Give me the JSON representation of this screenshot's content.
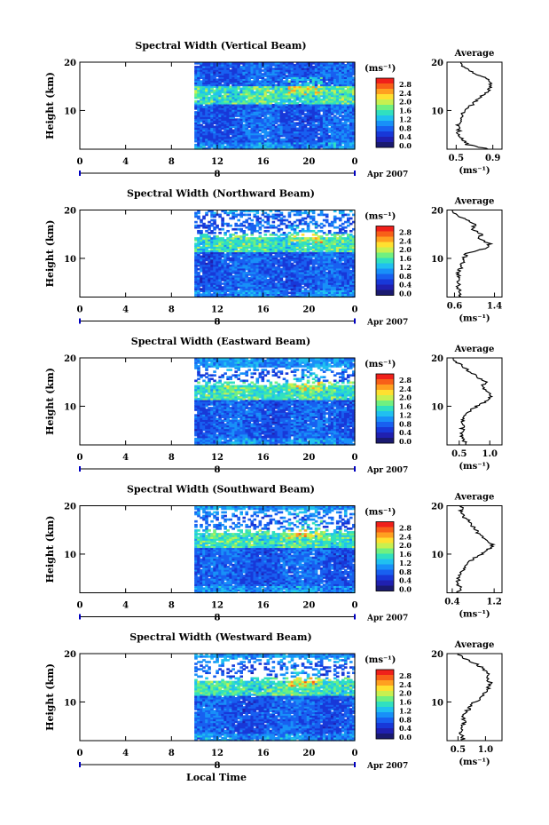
{
  "figure": {
    "xlabel": "Local Time",
    "date_label": "Apr 2007",
    "day_label": "8",
    "unit_label": "(ms⁻¹)",
    "avg_title": "Average",
    "avg_unit": "(ms⁻¹)"
  },
  "colorbar": {
    "ticks": [
      "2.8",
      "2.4",
      "2.0",
      "1.6",
      "1.2",
      "0.8",
      "0.4",
      "0.0"
    ],
    "colors": [
      "#f0201a",
      "#f86018",
      "#ffa020",
      "#ffe030",
      "#c8f050",
      "#70f080",
      "#30e0c0",
      "#20c0f0",
      "#1890f8",
      "#1860f0",
      "#1838d8",
      "#2020b0",
      "#1a1a70"
    ]
  },
  "chart_data": [
    {
      "type": "heatmap",
      "title": "Spectral Width (Vertical Beam)",
      "ylabel": "Height (km)",
      "xticks": [
        "0",
        "4",
        "8",
        "12",
        "16",
        "20",
        "0"
      ],
      "yticks": [
        "20",
        "10"
      ],
      "x_range": [
        0,
        24
      ],
      "y_range": [
        2,
        20
      ],
      "data_start_hour": 10,
      "variant": 0,
      "gap_top": 21.0,
      "gap_bottom": 20.0,
      "speckle": 0.18,
      "average": {
        "xticks": [
          "0.5",
          "0.9"
        ],
        "x_range": [
          0.4,
          1.0
        ],
        "profile": [
          [
            2,
            0.86
          ],
          [
            3,
            0.62
          ],
          [
            4,
            0.56
          ],
          [
            5,
            0.52
          ],
          [
            6,
            0.53
          ],
          [
            7,
            0.51
          ],
          [
            8,
            0.54
          ],
          [
            9,
            0.56
          ],
          [
            10,
            0.58
          ],
          [
            11,
            0.66
          ],
          [
            12,
            0.72
          ],
          [
            13,
            0.78
          ],
          [
            14,
            0.85
          ],
          [
            15,
            0.88
          ],
          [
            16,
            0.86
          ],
          [
            17,
            0.8
          ],
          [
            18,
            0.66
          ],
          [
            19,
            0.58
          ],
          [
            20,
            0.55
          ]
        ]
      }
    },
    {
      "type": "heatmap",
      "title": "Spectral Width (Northward Beam)",
      "ylabel": "Height (km)",
      "xticks": [
        "0",
        "4",
        "8",
        "12",
        "16",
        "20",
        "0"
      ],
      "yticks": [
        "20",
        "10"
      ],
      "x_range": [
        0,
        24
      ],
      "y_range": [
        2,
        20
      ],
      "data_start_hour": 10,
      "variant": 1,
      "gap_top": 20.0,
      "gap_bottom": 14.0,
      "speckle": 0.45,
      "average": {
        "xticks": [
          "0.6",
          "1.4"
        ],
        "x_range": [
          0.45,
          1.55
        ],
        "profile": [
          [
            2,
            0.7
          ],
          [
            3,
            0.72
          ],
          [
            4,
            0.66
          ],
          [
            5,
            0.68
          ],
          [
            6,
            0.7
          ],
          [
            7,
            0.68
          ],
          [
            8,
            0.72
          ],
          [
            9,
            0.75
          ],
          [
            10,
            0.78
          ],
          [
            11,
            0.85
          ],
          [
            12,
            1.2
          ],
          [
            13,
            1.3
          ],
          [
            14,
            1.1
          ],
          [
            15,
            1.15
          ],
          [
            16,
            0.95
          ],
          [
            17,
            1.0
          ],
          [
            18,
            0.82
          ],
          [
            19,
            0.62
          ],
          [
            20,
            0.56
          ]
        ]
      }
    },
    {
      "type": "heatmap",
      "title": "Spectral Width (Eastward Beam)",
      "ylabel": "Height (km)",
      "xticks": [
        "0",
        "4",
        "8",
        "12",
        "16",
        "20",
        "0"
      ],
      "yticks": [
        "20",
        "10"
      ],
      "x_range": [
        0,
        24
      ],
      "y_range": [
        2,
        20
      ],
      "data_start_hour": 10,
      "variant": 2,
      "gap_top": 18.0,
      "gap_bottom": 14.0,
      "speckle": 0.4,
      "average": {
        "xticks": [
          "0.5",
          "1.0"
        ],
        "x_range": [
          0.3,
          1.2
        ],
        "profile": [
          [
            2,
            0.62
          ],
          [
            3,
            0.58
          ],
          [
            4,
            0.55
          ],
          [
            5,
            0.56
          ],
          [
            6,
            0.55
          ],
          [
            7,
            0.56
          ],
          [
            8,
            0.6
          ],
          [
            9,
            0.66
          ],
          [
            10,
            0.78
          ],
          [
            11,
            0.95
          ],
          [
            12,
            1.02
          ],
          [
            13,
            0.95
          ],
          [
            14,
            0.88
          ],
          [
            15,
            0.92
          ],
          [
            16,
            0.8
          ],
          [
            17,
            0.7
          ],
          [
            18,
            0.58
          ],
          [
            19,
            0.48
          ],
          [
            20,
            0.4
          ]
        ]
      }
    },
    {
      "type": "heatmap",
      "title": "Spectral Width (Southward Beam)",
      "ylabel": "Height (km)",
      "xticks": [
        "0",
        "4",
        "8",
        "12",
        "16",
        "20",
        "0"
      ],
      "yticks": [
        "20",
        "10"
      ],
      "x_range": [
        0,
        24
      ],
      "y_range": [
        2,
        20
      ],
      "data_start_hour": 10,
      "variant": 3,
      "gap_top": 19.0,
      "gap_bottom": 14.0,
      "speckle": 0.4,
      "average": {
        "xticks": [
          "0.4",
          "1.2"
        ],
        "x_range": [
          0.3,
          1.35
        ],
        "profile": [
          [
            2,
            0.5
          ],
          [
            3,
            0.55
          ],
          [
            4,
            0.48
          ],
          [
            5,
            0.52
          ],
          [
            6,
            0.58
          ],
          [
            7,
            0.62
          ],
          [
            8,
            0.7
          ],
          [
            9,
            0.8
          ],
          [
            10,
            0.95
          ],
          [
            11,
            1.1
          ],
          [
            12,
            1.18
          ],
          [
            13,
            1.05
          ],
          [
            14,
            0.92
          ],
          [
            15,
            0.85
          ],
          [
            16,
            0.78
          ],
          [
            17,
            0.7
          ],
          [
            18,
            0.6
          ],
          [
            19,
            0.56
          ],
          [
            20,
            0.58
          ]
        ]
      }
    },
    {
      "type": "heatmap",
      "title": "Spectral Width (Westward Beam)",
      "ylabel": "Height (km)",
      "xticks": [
        "0",
        "4",
        "8",
        "12",
        "16",
        "20",
        "0"
      ],
      "yticks": [
        "20",
        "10"
      ],
      "x_range": [
        0,
        24
      ],
      "y_range": [
        2,
        20
      ],
      "data_start_hour": 10,
      "variant": 4,
      "gap_top": 19.0,
      "gap_bottom": 14.0,
      "speckle": 0.35,
      "average": {
        "xticks": [
          "0.5",
          "1.0"
        ],
        "x_range": [
          0.3,
          1.3
        ],
        "profile": [
          [
            2,
            0.6
          ],
          [
            3,
            0.58
          ],
          [
            4,
            0.55
          ],
          [
            5,
            0.56
          ],
          [
            6,
            0.62
          ],
          [
            7,
            0.6
          ],
          [
            8,
            0.66
          ],
          [
            9,
            0.72
          ],
          [
            10,
            0.8
          ],
          [
            11,
            0.95
          ],
          [
            12,
            1.0
          ],
          [
            13,
            1.05
          ],
          [
            14,
            1.1
          ],
          [
            15,
            1.0
          ],
          [
            16,
            1.05
          ],
          [
            17,
            0.95
          ],
          [
            18,
            0.8
          ],
          [
            19,
            0.6
          ],
          [
            20,
            0.5
          ]
        ]
      }
    }
  ]
}
